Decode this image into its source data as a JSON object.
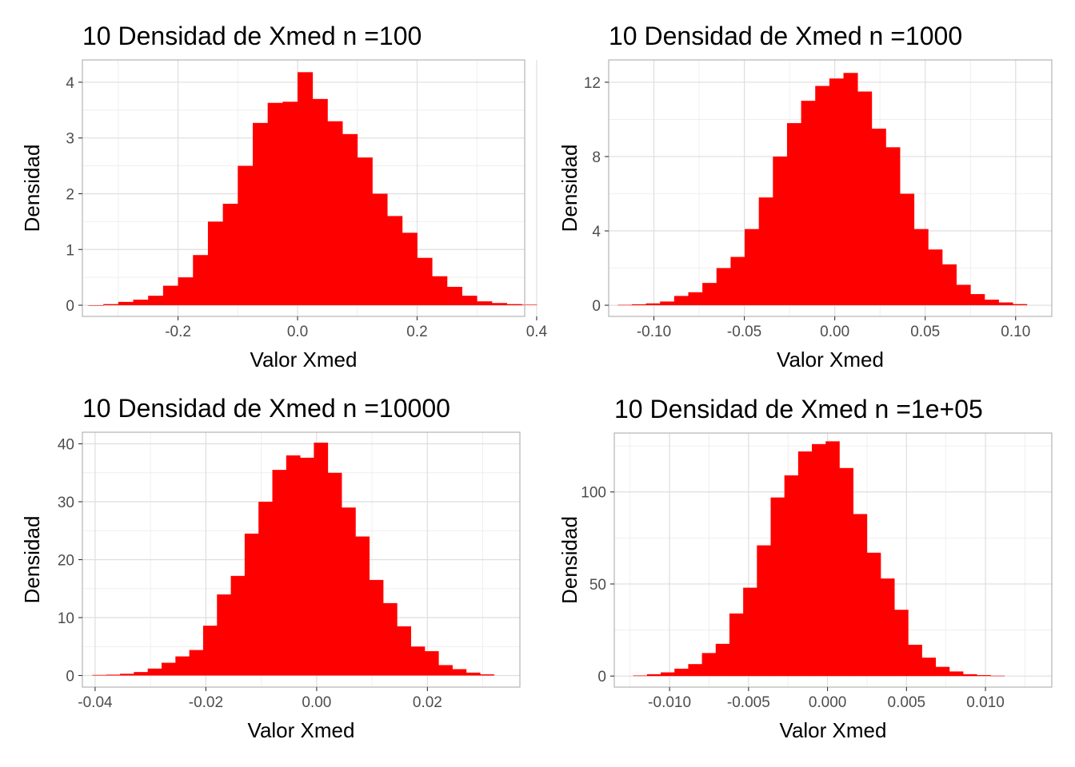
{
  "chart_data": [
    {
      "type": "bar",
      "title": "10 Densidad de Xmed n =100",
      "xlabel": "Valor Xmed",
      "ylabel": "Densidad",
      "xlim": [
        -0.36,
        0.38
      ],
      "ylim": [
        -0.2,
        4.4
      ],
      "xticks": [
        -0.2,
        0.0,
        0.2,
        0.4
      ],
      "xtick_labels": [
        "-0.2",
        "0.0",
        "0.2",
        "0.4"
      ],
      "yticks": [
        0,
        1,
        2,
        3,
        4
      ],
      "ytick_labels": [
        "0",
        "1",
        "2",
        "3",
        "4"
      ],
      "grid": true,
      "color": "#ff0000",
      "bin_start": -0.35,
      "bin_width": 0.025,
      "values": [
        0.0,
        0.02,
        0.06,
        0.1,
        0.17,
        0.35,
        0.5,
        0.9,
        1.5,
        1.82,
        2.5,
        3.27,
        3.63,
        3.65,
        4.18,
        3.7,
        3.3,
        3.07,
        2.65,
        2.0,
        1.6,
        1.3,
        0.85,
        0.52,
        0.33,
        0.17,
        0.07,
        0.04,
        0.02,
        0.01
      ]
    },
    {
      "type": "bar",
      "title": "10 Densidad de Xmed n =1000",
      "xlabel": "Valor Xmed",
      "ylabel": "Densidad",
      "xlim": [
        -0.125,
        0.12
      ],
      "ylim": [
        -0.6,
        13.2
      ],
      "xticks": [
        -0.1,
        -0.05,
        0.0,
        0.05,
        0.1
      ],
      "xtick_labels": [
        "-0.10",
        "-0.05",
        "0.00",
        "0.05",
        "0.10"
      ],
      "yticks": [
        0,
        4,
        8,
        12
      ],
      "ytick_labels": [
        "0",
        "4",
        "8",
        "12"
      ],
      "grid": true,
      "color": "#ff0000",
      "bin_start": -0.12,
      "bin_width": 0.0078,
      "values": [
        0.02,
        0.05,
        0.1,
        0.2,
        0.5,
        0.7,
        1.2,
        2.0,
        2.6,
        4.1,
        5.8,
        8.0,
        9.8,
        11.0,
        11.8,
        12.2,
        12.5,
        11.5,
        9.5,
        8.5,
        6.0,
        4.1,
        3.0,
        2.2,
        1.1,
        0.6,
        0.3,
        0.15,
        0.06
      ]
    },
    {
      "type": "bar",
      "title": "10 Densidad de Xmed n =10000",
      "xlabel": "Valor Xmed",
      "ylabel": "Densidad",
      "xlim": [
        -0.0423,
        0.0367
      ],
      "ylim": [
        -2.0,
        42.0
      ],
      "xticks": [
        -0.04,
        -0.02,
        0.0,
        0.02
      ],
      "xtick_labels": [
        "-0.04",
        "-0.02",
        "0.00",
        "0.02"
      ],
      "yticks": [
        0,
        10,
        20,
        30,
        40
      ],
      "ytick_labels": [
        "0",
        "10",
        "20",
        "30",
        "40"
      ],
      "grid": true,
      "color": "#ff0000",
      "bin_start": -0.0405,
      "bin_width": 0.0025,
      "values": [
        0.1,
        0.15,
        0.3,
        0.6,
        1.2,
        2.2,
        3.3,
        4.4,
        8.6,
        14.0,
        17.2,
        24.5,
        30.0,
        35.5,
        38.0,
        37.6,
        40.2,
        35.0,
        29.0,
        24.0,
        16.5,
        12.5,
        8.5,
        5.0,
        4.2,
        1.8,
        1.1,
        0.5,
        0.2
      ]
    },
    {
      "type": "bar",
      "title": "10 Densidad de Xmed n =1e+05",
      "xlabel": "Valor Xmed",
      "ylabel": "Densidad",
      "xlim": [
        -0.0135,
        0.0142
      ],
      "ylim": [
        -6.0,
        132.0
      ],
      "xticks": [
        -0.01,
        -0.005,
        0.0,
        0.005,
        0.01
      ],
      "xtick_labels": [
        "-0.010",
        "-0.005",
        "0.000",
        "0.005",
        "0.010"
      ],
      "yticks": [
        0,
        50,
        100
      ],
      "ytick_labels": [
        "0",
        "50",
        "100"
      ],
      "grid": true,
      "color": "#ff0000",
      "bin_start": -0.0123,
      "bin_width": 0.00087,
      "values": [
        0.3,
        1.0,
        2.0,
        4.0,
        6.5,
        12.5,
        17.5,
        34.0,
        48.0,
        71.0,
        97.0,
        109.0,
        122.0,
        126.0,
        127.5,
        113.0,
        88.0,
        67.0,
        53.0,
        36.0,
        17.0,
        10.0,
        5.0,
        2.5,
        1.0,
        0.5,
        0.2
      ]
    }
  ]
}
